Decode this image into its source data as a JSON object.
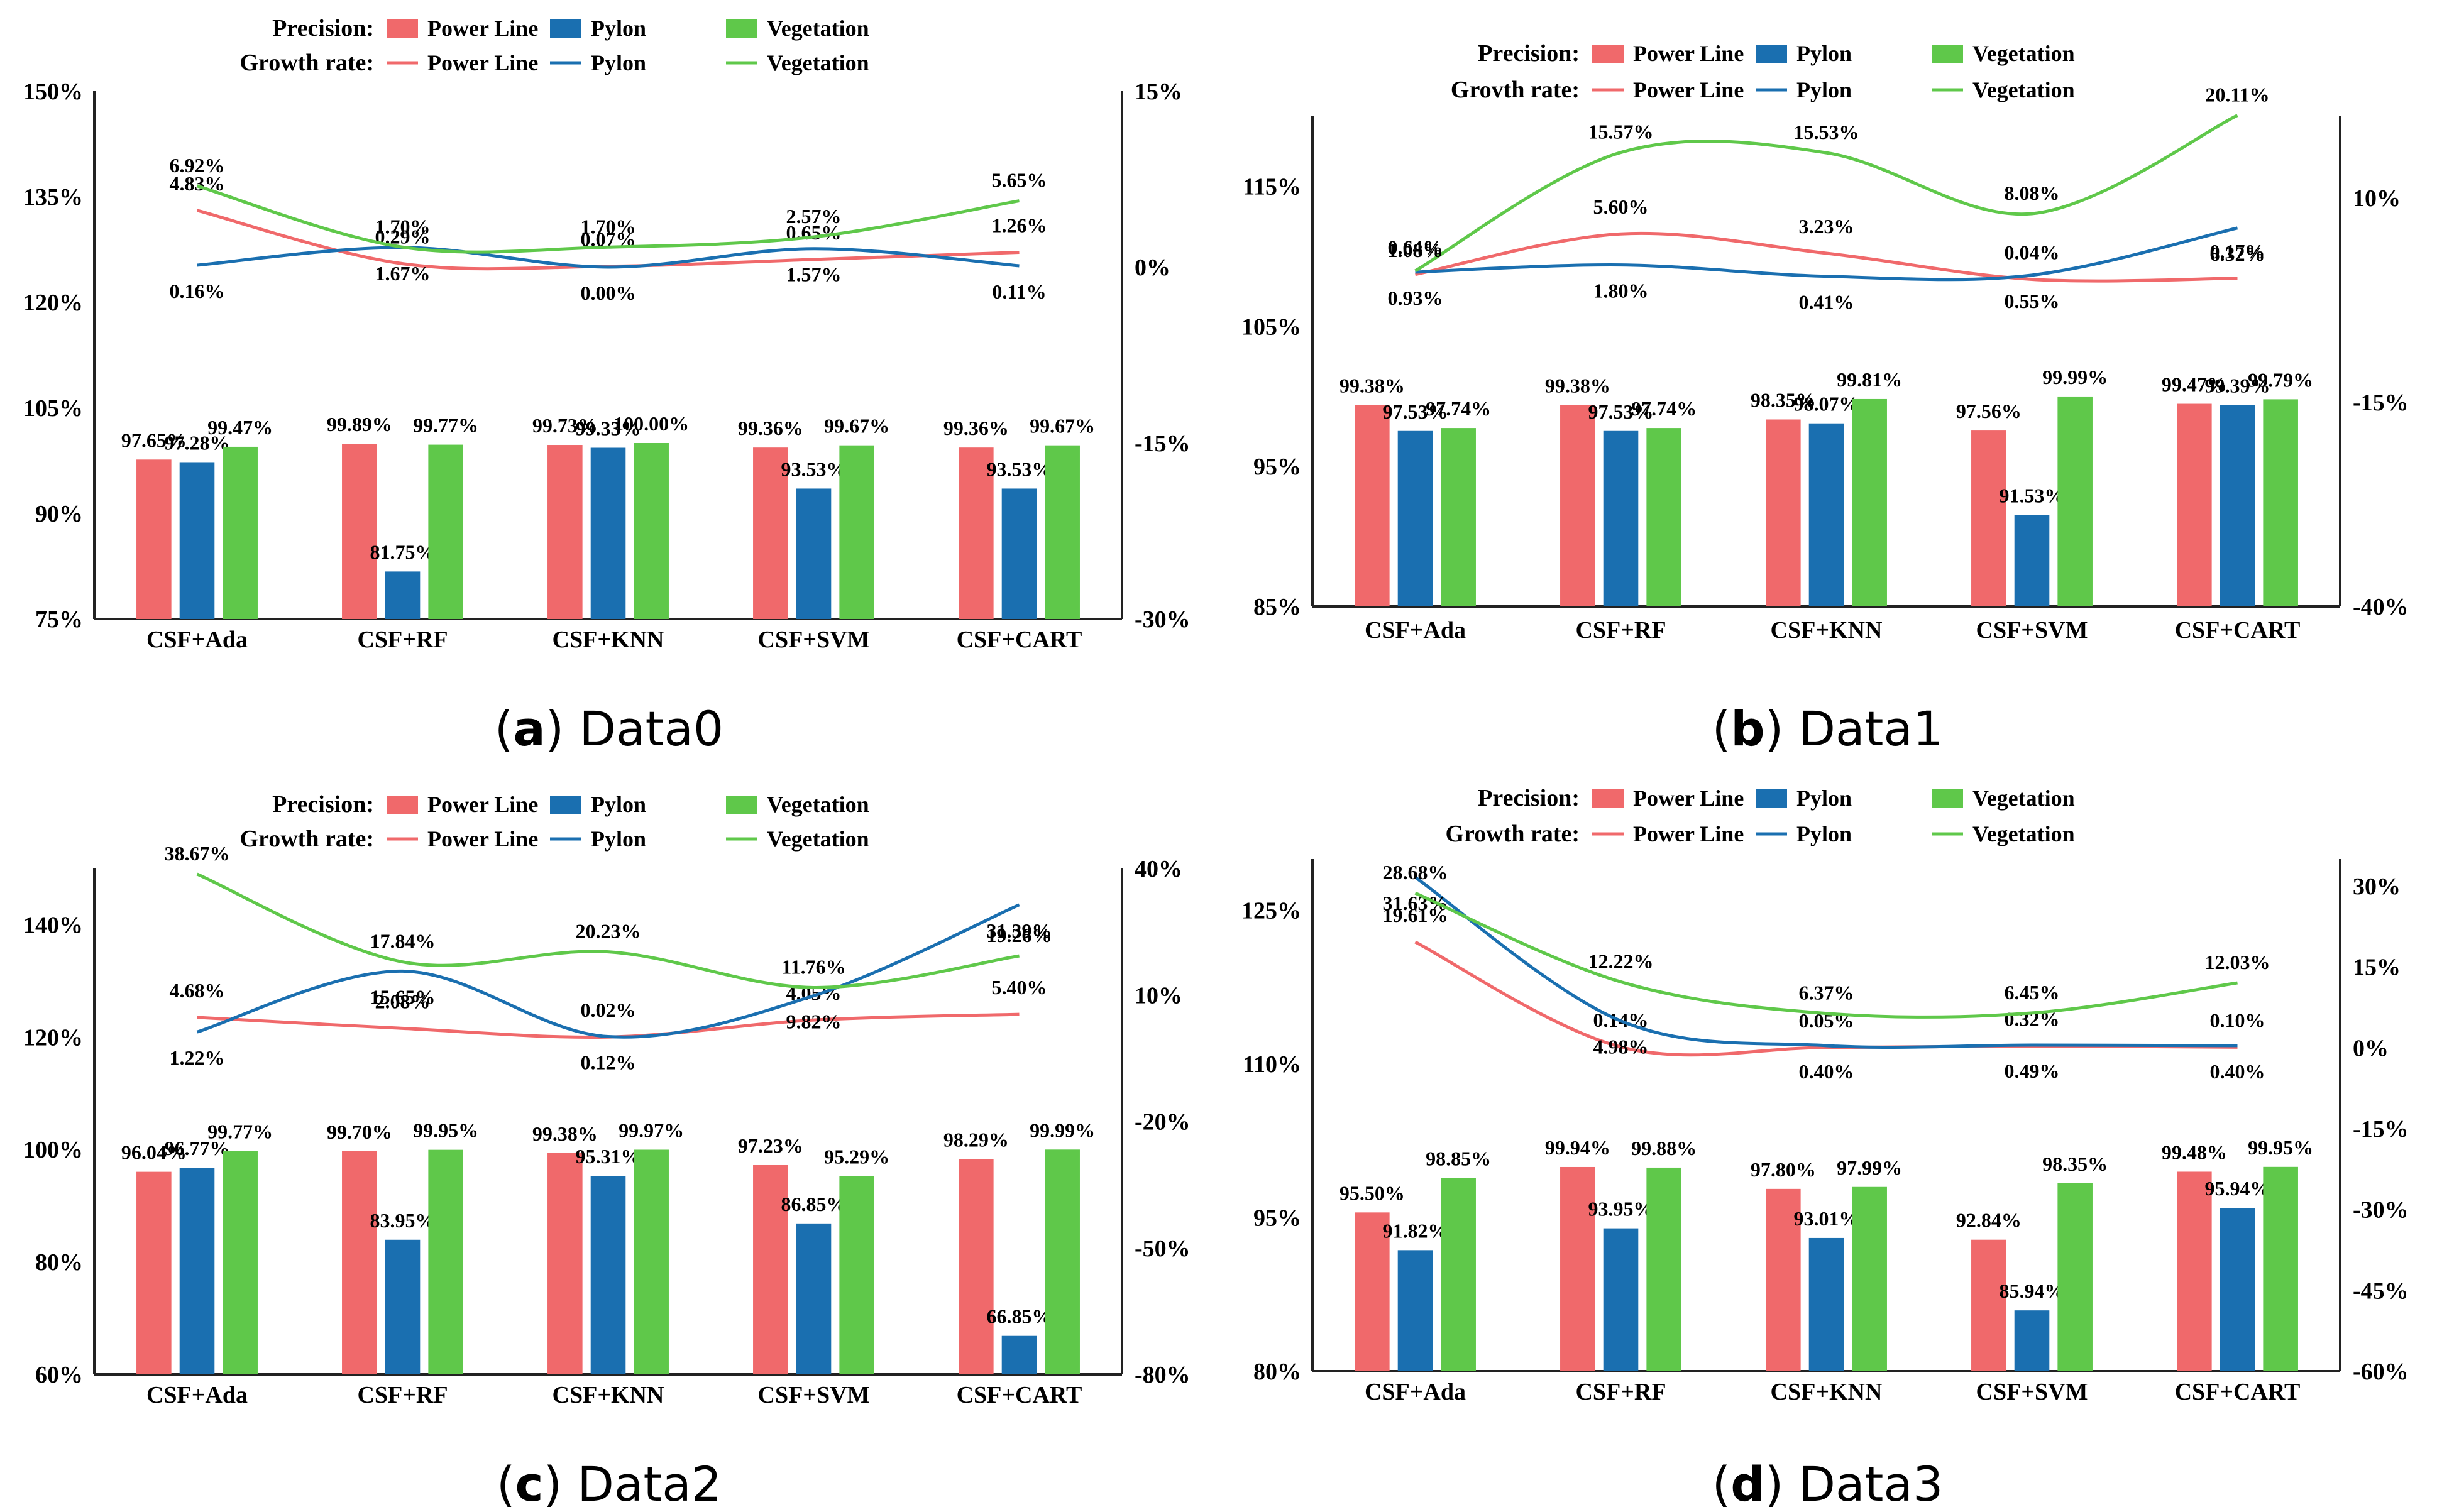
{
  "colors": {
    "power": "#f0696b",
    "pylon": "#1a6fb0",
    "veg": "#5fc84a",
    "axis": "#000000"
  },
  "chart_data": [
    {
      "type": "bar+line",
      "panel_letter": "a",
      "panel_title": "Data0",
      "legend_precision_label": "Precision",
      "legend_growth_label": "Growth rate",
      "series_names": [
        "Power Line",
        "Pylon",
        "Vegetation"
      ],
      "categories": [
        "CSF+Ada",
        "CSF+RF",
        "CSF+KNN",
        "CSF+SVM",
        "CSF+CART"
      ],
      "left_axis": {
        "min": 75,
        "max": 150,
        "ticks": [
          "75%",
          "90%",
          "105%",
          "120%",
          "135%",
          "150%"
        ]
      },
      "right_axis": {
        "min": -30,
        "max": 15,
        "ticks": [
          "-30%",
          "-15%",
          "0%",
          "15%"
        ]
      },
      "precision": [
        {
          "name": "Power Line",
          "values": [
            97.65,
            99.89,
            99.73,
            99.36,
            99.36
          ],
          "labels": [
            "97.65%",
            "99.89%",
            "99.73%",
            "99.36%",
            "99.36%"
          ]
        },
        {
          "name": "Pylon",
          "values": [
            97.28,
            81.75,
            99.33,
            93.53,
            93.53
          ],
          "labels": [
            "97.28%",
            "81.75%",
            "99.33%",
            "93.53%",
            "93.53%"
          ]
        },
        {
          "name": "Vegetation",
          "values": [
            99.47,
            99.77,
            100.0,
            99.67,
            99.67
          ],
          "labels": [
            "99.47%",
            "99.77%",
            "100.00%",
            "99.67%",
            "99.67%"
          ]
        }
      ],
      "growth": [
        {
          "name": "Power Line",
          "values": [
            4.83,
            0.29,
            0.07,
            0.65,
            1.26
          ],
          "labels": [
            "4.83%",
            "0.29%",
            "0.07%",
            "0.65%",
            "1.26%"
          ]
        },
        {
          "name": "Pylon",
          "values": [
            0.16,
            1.67,
            0.0,
            1.57,
            0.11
          ],
          "labels": [
            "0.16%",
            "1.67%",
            "0.00%",
            "1.57%",
            "0.11%"
          ]
        },
        {
          "name": "Vegetation",
          "values": [
            6.92,
            1.7,
            1.7,
            2.57,
            5.65
          ],
          "labels": [
            "6.92%",
            "1.70%",
            "1.70%",
            "2.57%",
            "5.65%"
          ]
        }
      ]
    },
    {
      "type": "bar+line",
      "panel_letter": "b",
      "panel_title": "Data1",
      "legend_precision_label": "Precision",
      "legend_growth_label": "Grovth rate",
      "series_names": [
        "Power Line",
        "Pylon",
        "Vegetation"
      ],
      "categories": [
        "CSF+Ada",
        "CSF+RF",
        "CSF+KNN",
        "CSF+SVM",
        "CSF+CART"
      ],
      "left_axis": {
        "min": 85,
        "max": 120,
        "ticks": [
          "85%",
          "95%",
          "105%",
          "115%"
        ]
      },
      "right_axis": {
        "min": -40,
        "max": 20,
        "ticks": [
          "-40%",
          "-15%",
          "10%"
        ]
      },
      "precision": [
        {
          "name": "Power Line",
          "values": [
            99.38,
            99.38,
            98.35,
            97.56,
            99.47
          ],
          "labels": [
            "99.38%",
            "99.38%",
            "98.35%",
            "97.56%",
            "99.47%"
          ]
        },
        {
          "name": "Pylon",
          "values": [
            97.53,
            97.53,
            98.07,
            91.53,
            99.39
          ],
          "labels": [
            "97.53%",
            "97.53%",
            "98.07%",
            "91.53%",
            "99.39%"
          ]
        },
        {
          "name": "Vegetation",
          "values": [
            97.74,
            97.74,
            99.81,
            99.99,
            99.79
          ],
          "labels": [
            "97.74%",
            "97.74%",
            "99.81%",
            "99.99%",
            "99.79%"
          ]
        }
      ],
      "growth": [
        {
          "name": "Power Line",
          "values": [
            0.64,
            5.6,
            3.23,
            0.04,
            0.17
          ],
          "labels": [
            "0.64%",
            "5.60%",
            "3.23%",
            "0.04%",
            "0.17%"
          ]
        },
        {
          "name": "Pylon",
          "values": [
            0.93,
            1.8,
            0.41,
            0.55,
            6.32
          ],
          "labels": [
            "0.93%",
            "1.80%",
            "0.41%",
            "0.55%",
            "6.32%"
          ]
        },
        {
          "name": "Vegetation",
          "values": [
            1.08,
            15.57,
            15.53,
            8.08,
            20.11
          ],
          "labels": [
            "1.08%",
            "15.57%",
            "15.53%",
            "8.08%",
            "20.11%"
          ]
        }
      ]
    },
    {
      "type": "bar+line",
      "panel_letter": "c",
      "panel_title": "Data2",
      "legend_precision_label": "Precision",
      "legend_growth_label": "Growth rate",
      "series_names": [
        "Power Line",
        "Pylon",
        "Vegetation"
      ],
      "categories": [
        "CSF+Ada",
        "CSF+RF",
        "CSF+KNN",
        "CSF+SVM",
        "CSF+CART"
      ],
      "left_axis": {
        "min": 60,
        "max": 150,
        "ticks": [
          "60%",
          "80%",
          "100%",
          "120%",
          "140%"
        ]
      },
      "right_axis": {
        "min": -80,
        "max": 40,
        "ticks": [
          "-80%",
          "-50%",
          "-20%",
          "10%",
          "40%"
        ]
      },
      "precision": [
        {
          "name": "Power Line",
          "values": [
            96.04,
            99.7,
            99.38,
            97.23,
            98.29
          ],
          "labels": [
            "96.04%",
            "99.70%",
            "99.38%",
            "97.23%",
            "98.29%"
          ]
        },
        {
          "name": "Pylon",
          "values": [
            96.77,
            83.95,
            95.31,
            86.85,
            66.85
          ],
          "labels": [
            "96.77%",
            "83.95%",
            "95.31%",
            "86.85%",
            "66.85%"
          ]
        },
        {
          "name": "Vegetation",
          "values": [
            99.77,
            99.95,
            99.97,
            95.29,
            99.99
          ],
          "labels": [
            "99.77%",
            "99.95%",
            "99.97%",
            "95.29%",
            "99.99%"
          ]
        }
      ],
      "growth": [
        {
          "name": "Power Line",
          "values": [
            4.68,
            2.08,
            0.02,
            4.05,
            5.4
          ],
          "labels": [
            "4.68%",
            "2.08%",
            "0.02%",
            "4.05%",
            "5.40%"
          ]
        },
        {
          "name": "Pylon",
          "values": [
            1.22,
            15.65,
            0.12,
            9.82,
            31.39
          ],
          "labels": [
            "1.22%",
            "15.65%",
            "0.12%",
            "9.82%",
            "31.39%"
          ]
        },
        {
          "name": "Vegetation",
          "values": [
            38.67,
            17.84,
            20.23,
            11.76,
            19.26
          ],
          "labels": [
            "38.67%",
            "17.84%",
            "20.23%",
            "11.76%",
            "19.26%"
          ]
        }
      ]
    },
    {
      "type": "bar+line",
      "panel_letter": "d",
      "panel_title": "Data3",
      "legend_precision_label": "Precision",
      "legend_growth_label": "Growth rate",
      "series_names": [
        "Power Line",
        "Pylon",
        "Vegetation"
      ],
      "categories": [
        "CSF+Ada",
        "CSF+RF",
        "CSF+KNN",
        "CSF+SVM",
        "CSF+CART"
      ],
      "left_axis": {
        "min": 80,
        "max": 130,
        "ticks": [
          "80%",
          "95%",
          "110%",
          "125%"
        ]
      },
      "right_axis": {
        "min": -60,
        "max": 35,
        "ticks": [
          "-60%",
          "-45%",
          "-30%",
          "-15%",
          "0%",
          "15%",
          "30%"
        ]
      },
      "precision": [
        {
          "name": "Power Line",
          "values": [
            95.5,
            99.94,
            97.8,
            92.84,
            99.48
          ],
          "labels": [
            "95.50%",
            "99.94%",
            "97.80%",
            "92.84%",
            "99.48%"
          ]
        },
        {
          "name": "Pylon",
          "values": [
            91.82,
            93.95,
            93.01,
            85.94,
            95.94
          ],
          "labels": [
            "91.82%",
            "93.95%",
            "93.01%",
            "85.94%",
            "95.94%"
          ]
        },
        {
          "name": "Vegetation",
          "values": [
            98.85,
            99.88,
            97.99,
            98.35,
            99.95
          ],
          "labels": [
            "98.85%",
            "99.88%",
            "97.99%",
            "98.35%",
            "99.95%"
          ]
        }
      ],
      "growth": [
        {
          "name": "Power Line",
          "values": [
            19.61,
            0.14,
            0.05,
            0.32,
            0.1
          ],
          "labels": [
            "19.61%",
            "0.14%",
            "0.05%",
            "0.32%",
            "0.10%"
          ]
        },
        {
          "name": "Pylon",
          "values": [
            31.63,
            4.98,
            0.4,
            0.49,
            0.4
          ],
          "labels": [
            "31.63%",
            "4.98%",
            "0.40%",
            "0.49%",
            "0.40%"
          ]
        },
        {
          "name": "Vegetation",
          "values": [
            28.68,
            12.22,
            6.37,
            6.45,
            12.03
          ],
          "labels": [
            "28.68%",
            "12.22%",
            "6.37%",
            "6.45%",
            "12.03%"
          ]
        }
      ]
    }
  ]
}
